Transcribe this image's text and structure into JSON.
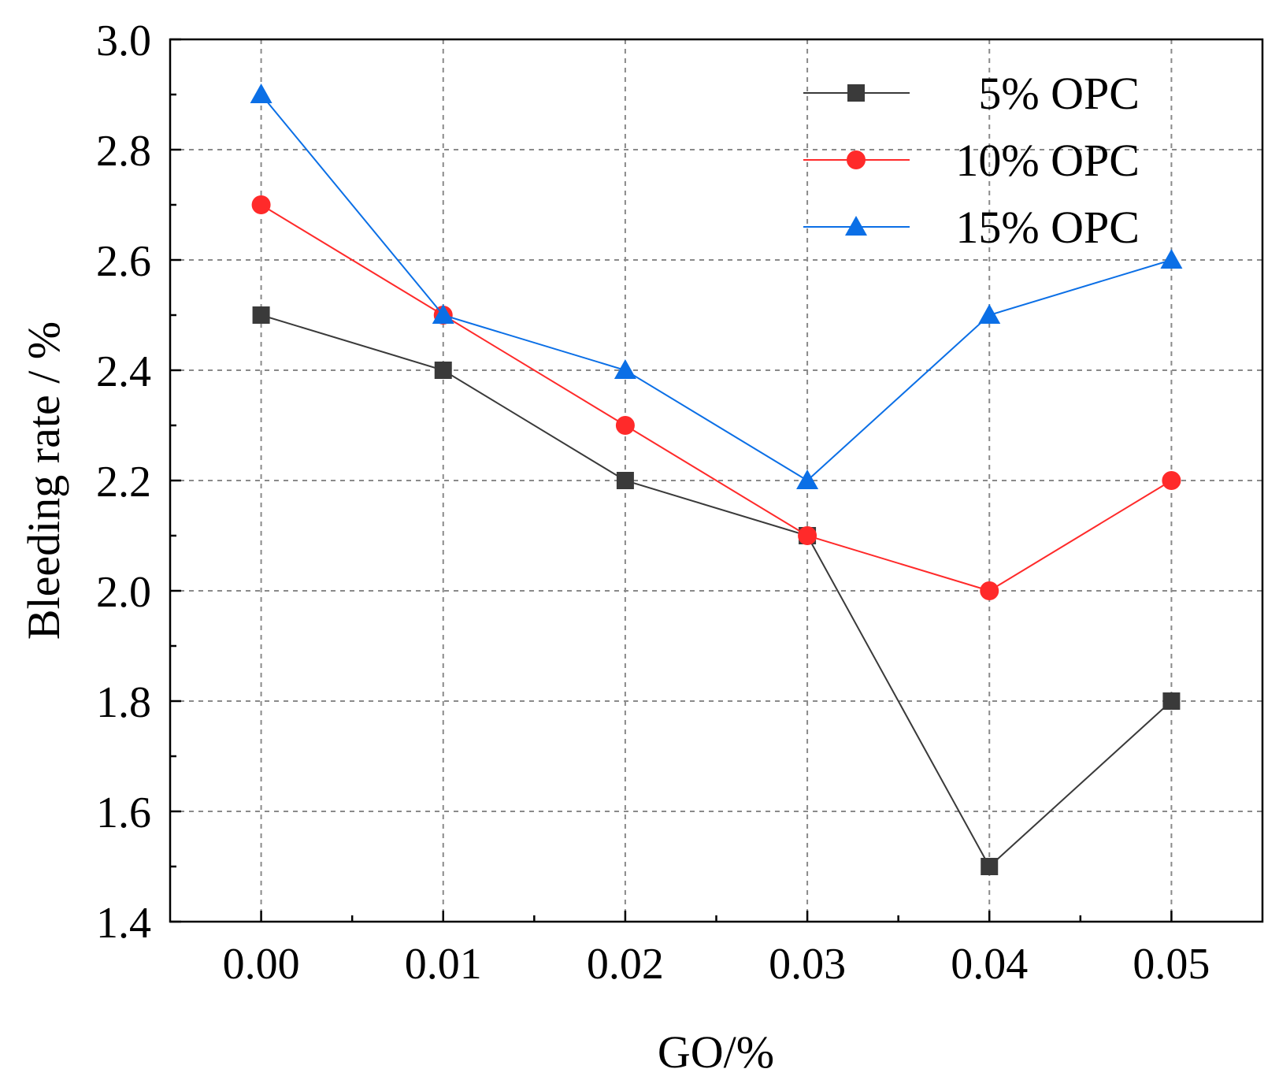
{
  "chart_data": {
    "type": "line",
    "title": "",
    "xlabel": "GO/%",
    "ylabel": "Bleeding rate / %",
    "x": [
      0.0,
      0.01,
      0.02,
      0.03,
      0.04,
      0.05
    ],
    "x_tick_labels": [
      "0.00",
      "0.01",
      "0.02",
      "0.03",
      "0.04",
      "0.05"
    ],
    "xlim": [
      -0.005,
      0.055
    ],
    "ylim": [
      1.4,
      3.0
    ],
    "y_ticks": [
      1.4,
      1.6,
      1.8,
      2.0,
      2.2,
      2.4,
      2.6,
      2.8,
      3.0
    ],
    "y_tick_labels": [
      "1.4",
      "1.6",
      "1.8",
      "2.0",
      "2.2",
      "2.4",
      "2.6",
      "2.8",
      "3.0"
    ],
    "grid": true,
    "legend_position": "top-right",
    "series": [
      {
        "name": "5% OPC",
        "marker": "square",
        "color": "#3a3a3a",
        "values": [
          2.5,
          2.4,
          2.2,
          2.1,
          1.5,
          1.8
        ]
      },
      {
        "name": "10% OPC",
        "marker": "circle",
        "color": "#ff2a2a",
        "values": [
          2.7,
          2.5,
          2.3,
          2.1,
          2.0,
          2.2
        ]
      },
      {
        "name": "15% OPC",
        "marker": "triangle",
        "color": "#0b6fe6",
        "values": [
          2.9,
          2.5,
          2.4,
          2.2,
          2.5,
          2.6
        ]
      }
    ]
  }
}
